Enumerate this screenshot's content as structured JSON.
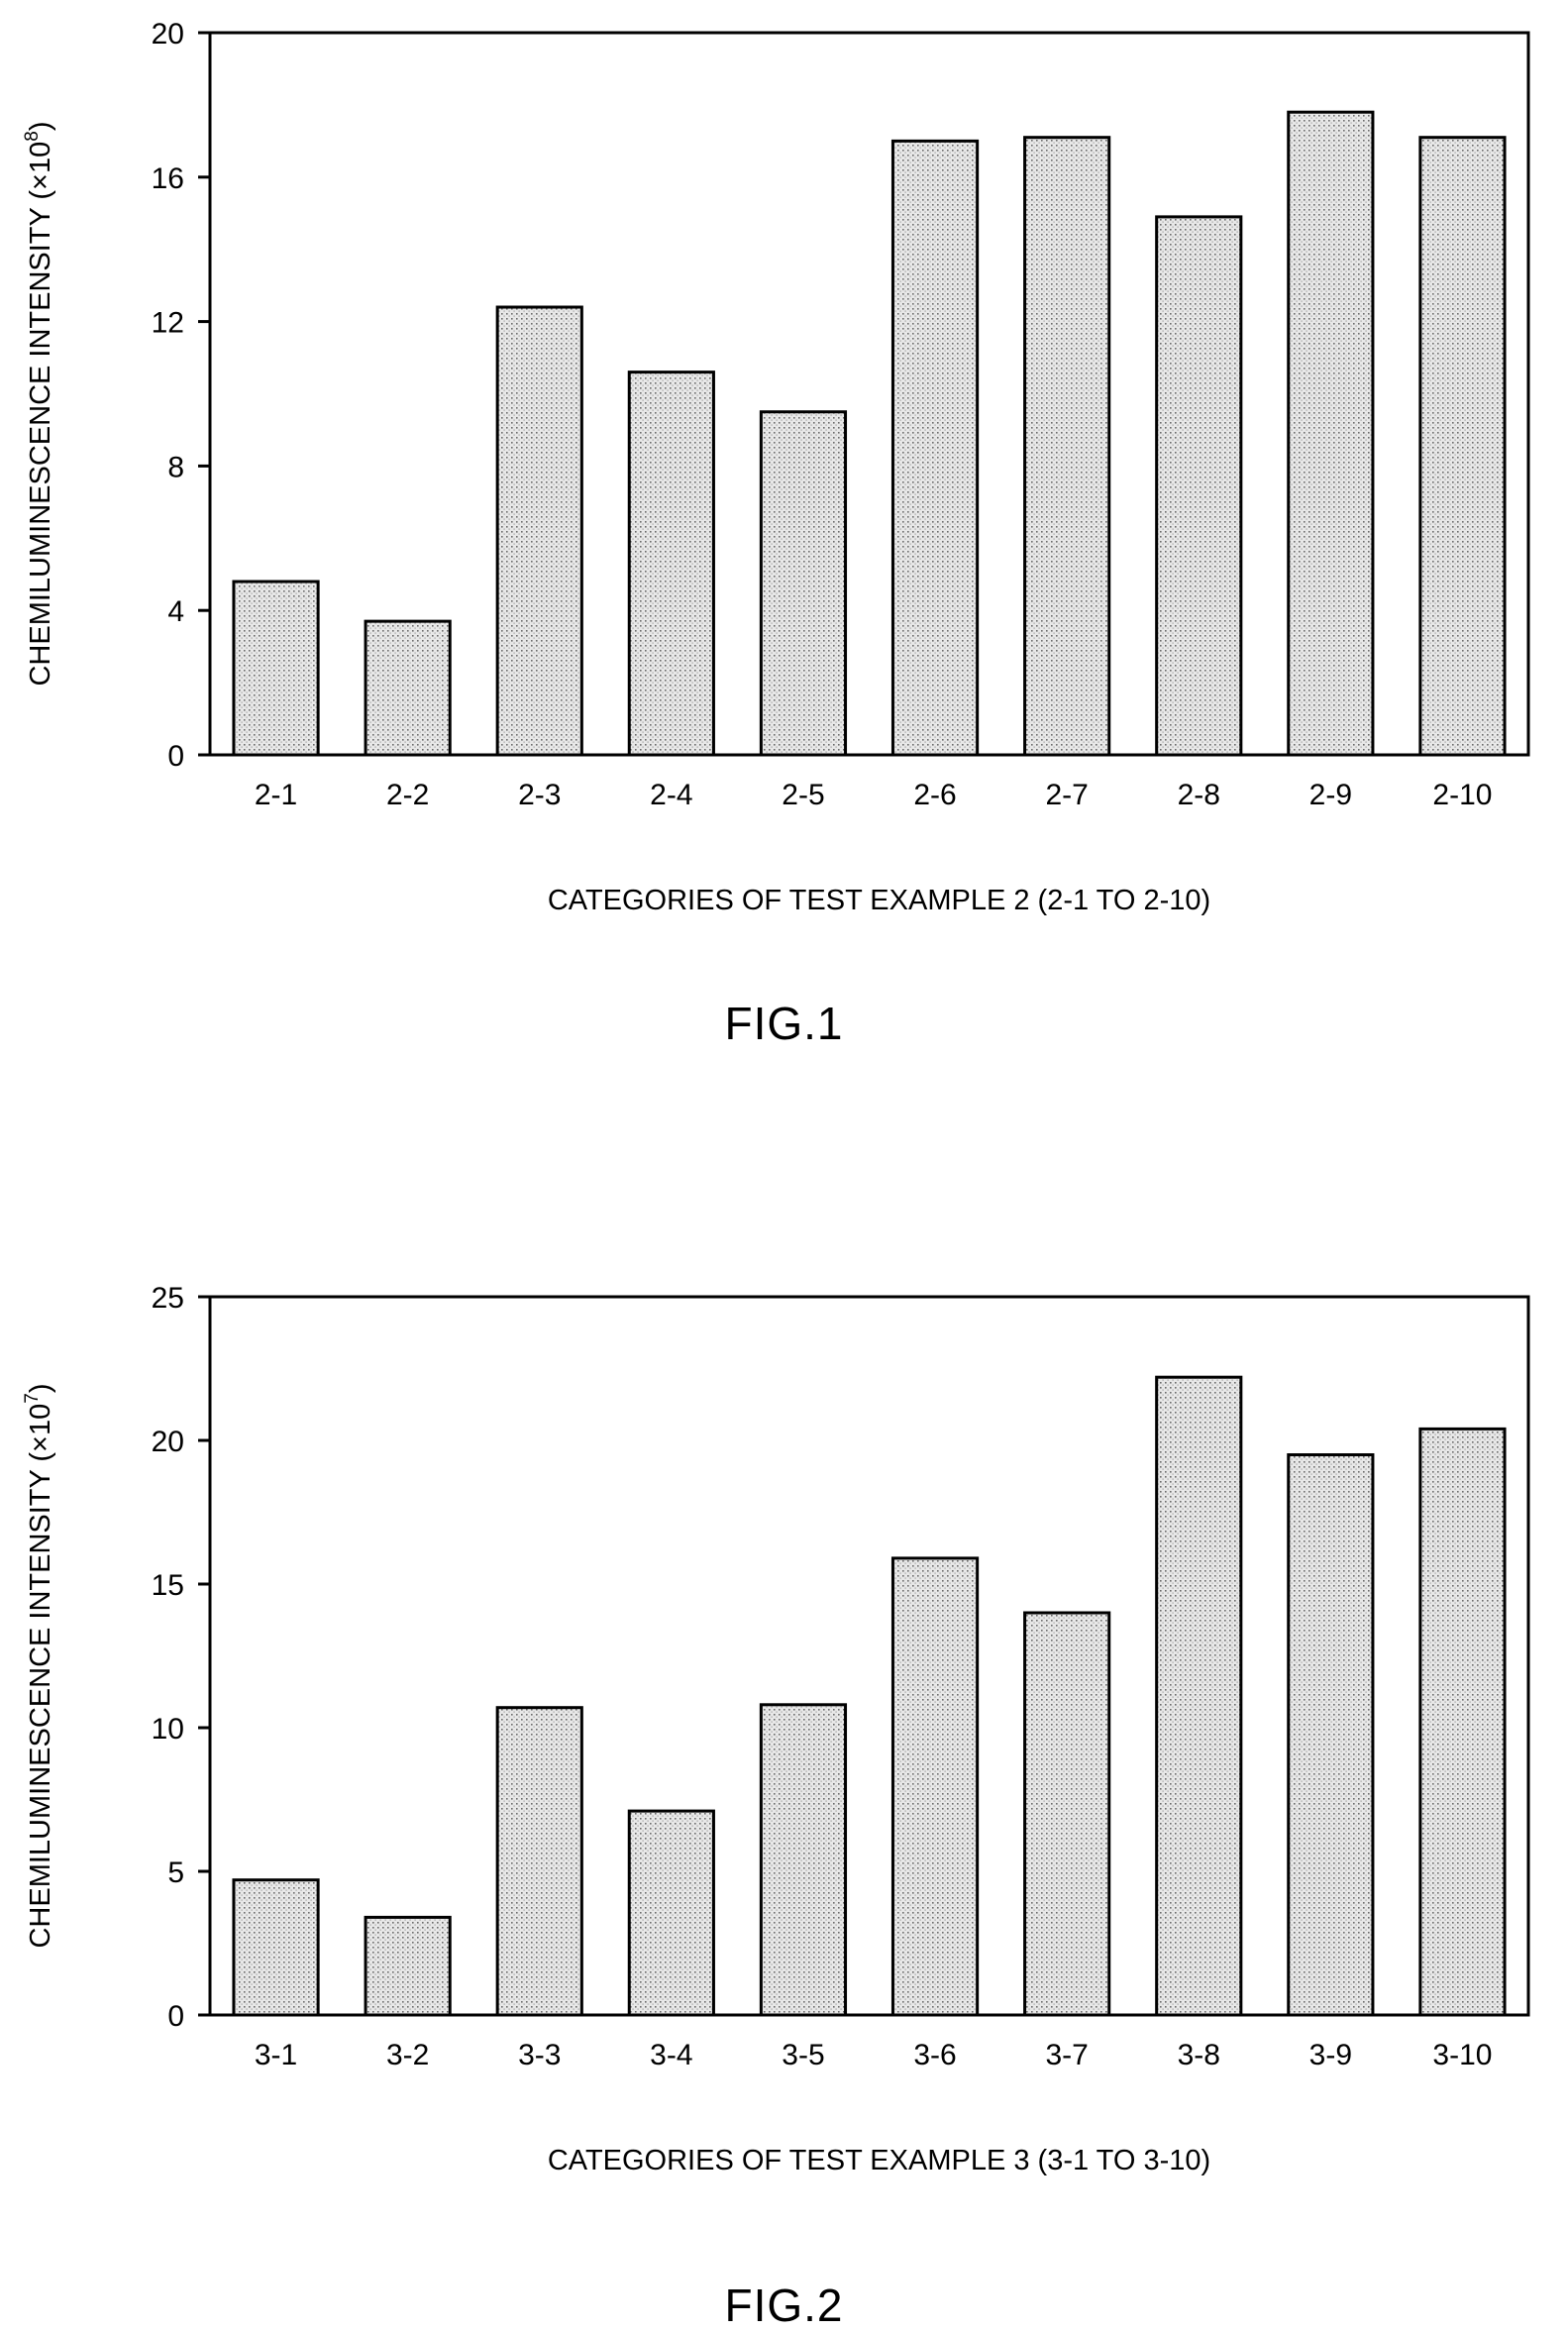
{
  "chart_data": [
    {
      "type": "bar",
      "categories": [
        "2-1",
        "2-2",
        "2-3",
        "2-4",
        "2-5",
        "2-6",
        "2-7",
        "2-8",
        "2-9",
        "2-10"
      ],
      "values": [
        4.8,
        3.7,
        12.4,
        10.6,
        9.5,
        17.0,
        17.1,
        14.9,
        17.8,
        17.1
      ],
      "title": "",
      "xlabel": "CATEGORIES OF TEST EXAMPLE 2 (2-1 TO 2-10)",
      "ylabel": "CHEMILUMINESCENCE INTENSITY (×10",
      "ylabel_exp": "8",
      "ylabel_close": ")",
      "ylim": [
        0,
        20
      ],
      "yticks": [
        "0",
        "4",
        "8",
        "12",
        "16",
        "20"
      ],
      "caption": "FIG.1",
      "grid": false,
      "bar_fill": "dotted-gray"
    },
    {
      "type": "bar",
      "categories": [
        "3-1",
        "3-2",
        "3-3",
        "3-4",
        "3-5",
        "3-6",
        "3-7",
        "3-8",
        "3-9",
        "3-10"
      ],
      "values": [
        4.7,
        3.4,
        10.7,
        7.1,
        10.8,
        15.9,
        14.0,
        22.2,
        19.5,
        20.4
      ],
      "title": "",
      "xlabel": "CATEGORIES OF TEST EXAMPLE 3 (3-1 TO 3-10)",
      "ylabel": "CHEMILUMINESCENCE INTENSITY (×10",
      "ylabel_exp": "7",
      "ylabel_close": ")",
      "ylim": [
        0,
        25
      ],
      "yticks": [
        "0",
        "5",
        "10",
        "15",
        "20",
        "25"
      ],
      "caption": "FIG.2",
      "grid": false,
      "bar_fill": "dotted-gray"
    }
  ]
}
